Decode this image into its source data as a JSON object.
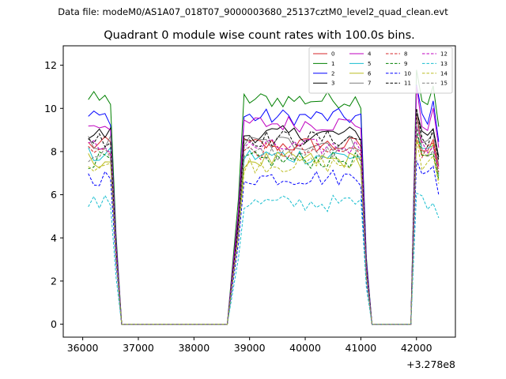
{
  "figure": {
    "suptitle": "Data file: modeM0/AS1A07_018T07_9000003680_25137cztM0_level2_quad_clean.evt"
  },
  "chart_data": {
    "type": "line",
    "title": "Quadrant 0 module wise count rates with 100.0s bins.",
    "xlabel": "",
    "ylabel": "",
    "x_offset_label": "+3.278e8",
    "xlim": [
      35650,
      42700
    ],
    "ylim": [
      -0.6,
      12.9
    ],
    "xticks": [
      36000,
      37000,
      38000,
      39000,
      40000,
      41000,
      42000
    ],
    "xtick_labels": [
      "36000",
      "37000",
      "38000",
      "39000",
      "40000",
      "41000",
      "42000"
    ],
    "yticks": [
      0,
      2,
      4,
      6,
      8,
      10,
      12
    ],
    "ytick_labels": [
      "0",
      "2",
      "4",
      "6",
      "8",
      "10",
      "12"
    ],
    "grid": false,
    "legend": {
      "placement": "top-right",
      "columns": 4
    },
    "segments": [
      {
        "on_start": 36100,
        "on_end": 36500,
        "fall_end": 36700
      },
      {
        "off_end": 38700,
        "on_start": 38900,
        "on_end": 41000,
        "fall_end": 41200
      },
      {
        "off_end": 41900,
        "on_start": 42000,
        "on_end": 42400
      }
    ],
    "series": [
      {
        "name": "0",
        "color": "#d62728",
        "dash": "solid",
        "level": 8.3
      },
      {
        "name": "1",
        "color": "#008000",
        "dash": "solid",
        "level": 10.4
      },
      {
        "name": "2",
        "color": "#0000ff",
        "dash": "solid",
        "level": 9.6
      },
      {
        "name": "3",
        "color": "#000000",
        "dash": "solid",
        "level": 8.8
      },
      {
        "name": "4",
        "color": "#bf00bf",
        "dash": "solid",
        "level": 9.3
      },
      {
        "name": "5",
        "color": "#17becf",
        "dash": "solid",
        "level": 7.8
      },
      {
        "name": "6",
        "color": "#bcbd22",
        "dash": "solid",
        "level": 7.6
      },
      {
        "name": "7",
        "color": "#7f7f7f",
        "dash": "solid",
        "level": 8.4
      },
      {
        "name": "8",
        "color": "#d62728",
        "dash": "dashed",
        "level": 8.0
      },
      {
        "name": "9",
        "color": "#008000",
        "dash": "dashed",
        "level": 7.6
      },
      {
        "name": "10",
        "color": "#0000ff",
        "dash": "dashed",
        "level": 6.8
      },
      {
        "name": "11",
        "color": "#000000",
        "dash": "dashed",
        "level": 8.6
      },
      {
        "name": "12",
        "color": "#bf00bf",
        "dash": "dashed",
        "level": 8.2
      },
      {
        "name": "13",
        "color": "#17becf",
        "dash": "dashed",
        "level": 5.6
      },
      {
        "name": "14",
        "color": "#bcbd22",
        "dash": "dashed",
        "level": 7.4
      },
      {
        "name": "15",
        "color": "#7f7f7f",
        "dash": "dashed",
        "level": 7.9
      }
    ]
  }
}
